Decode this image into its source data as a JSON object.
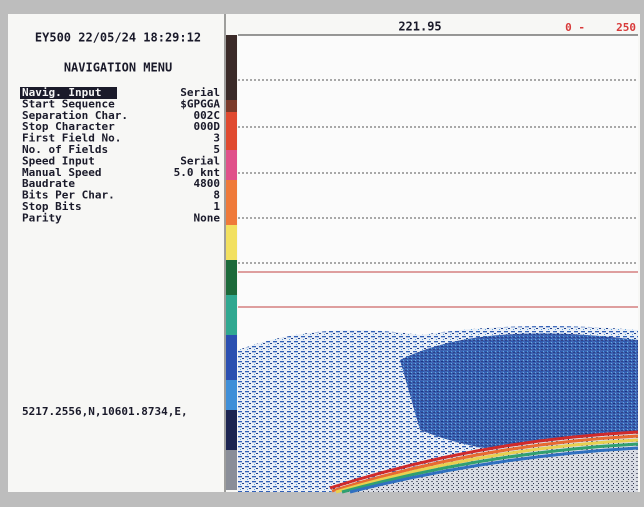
{
  "header": {
    "title": "EY500 22/05/24 18:29:12"
  },
  "menu": {
    "title": "NAVIGATION MENU",
    "items": [
      {
        "label": "Navig. Input",
        "value": "Serial"
      },
      {
        "label": "Start Sequence",
        "value": "$GPGGA"
      },
      {
        "label": "Separation Char.",
        "value": "002C"
      },
      {
        "label": "Stop Character",
        "value": "000D"
      },
      {
        "label": "First Field No.",
        "value": "3"
      },
      {
        "label": "No. of Fields",
        "value": "5"
      },
      {
        "label": "Speed Input",
        "value": "Serial"
      },
      {
        "label": "Manual Speed",
        "value": "5.0 knt"
      },
      {
        "label": "Baudrate",
        "value": "4800"
      },
      {
        "label": "Bits Per Char.",
        "value": "8"
      },
      {
        "label": "Stop Bits",
        "value": "1"
      },
      {
        "label": "Parity",
        "value": "None"
      }
    ]
  },
  "position": "5217.2556,N,10601.8734,E,",
  "echogram": {
    "depth": "221.95",
    "range_start": "0 -",
    "range_end": "250"
  }
}
